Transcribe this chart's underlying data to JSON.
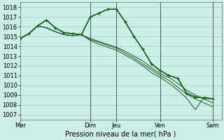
{
  "bg_color": "#cceee8",
  "grid_color": "#aad8d0",
  "line_color": "#1a5c1a",
  "ylim": [
    1006.5,
    1018.5
  ],
  "yticks": [
    1007,
    1008,
    1009,
    1010,
    1011,
    1012,
    1013,
    1014,
    1015,
    1016,
    1017,
    1018
  ],
  "xlabel": "Pression niveau de la mer( hPa )",
  "xtick_labels": [
    "Mer",
    "Dim",
    "Jeu",
    "Ven",
    "Sam"
  ],
  "xtick_positions": [
    0,
    8,
    11,
    16,
    22
  ],
  "vlines": [
    8,
    11,
    16,
    22
  ],
  "xlim": [
    0,
    23
  ],
  "series": [
    [
      1014.8,
      1015.3,
      1016.1,
      1016.7,
      1015.9,
      1015.4,
      1015.3,
      1015.2,
      1017.0,
      1017.4,
      1017.8,
      1017.8,
      1016.5,
      1015.0,
      1013.7,
      1012.2,
      1011.5,
      1011.0,
      1010.7,
      1009.2,
      1008.8,
      1008.7,
      1008.6
    ],
    [
      1014.8,
      1015.3,
      1016.1,
      1015.9,
      1015.5,
      1015.2,
      1015.1,
      1015.2,
      1014.8,
      1014.5,
      1014.2,
      1013.9,
      1013.5,
      1013.0,
      1012.5,
      1011.8,
      1011.2,
      1010.8,
      1010.2,
      1009.5,
      1009.0,
      1008.6,
      1008.2
    ],
    [
      1014.8,
      1015.3,
      1016.1,
      1015.9,
      1015.5,
      1015.2,
      1015.1,
      1015.2,
      1014.7,
      1014.4,
      1014.1,
      1013.8,
      1013.3,
      1012.8,
      1012.2,
      1011.6,
      1011.0,
      1010.5,
      1009.8,
      1009.1,
      1008.6,
      1008.2,
      1007.8
    ],
    [
      1014.8,
      1015.3,
      1016.1,
      1015.9,
      1015.5,
      1015.2,
      1015.1,
      1015.2,
      1014.6,
      1014.2,
      1013.9,
      1013.6,
      1013.1,
      1012.6,
      1012.0,
      1011.3,
      1010.8,
      1010.2,
      1009.5,
      1008.7,
      1007.5,
      1008.8,
      1008.6
    ],
    [
      1014.8,
      1015.3,
      1016.1,
      1016.7,
      1015.9,
      1015.4,
      1015.3,
      1015.2,
      1017.0,
      1017.4,
      1017.8,
      1017.8,
      1016.5,
      1015.0,
      1013.7,
      1012.2,
      1011.5,
      1011.0,
      1010.7,
      1009.2,
      1008.8,
      1008.7,
      1008.6
    ]
  ],
  "marker_series": [
    0,
    4
  ],
  "tick_fontsize": 6.0,
  "xlabel_fontsize": 7.0,
  "lw_main": 1.0,
  "lw_thin": 0.7,
  "marker_size": 3.5,
  "vline_color": "#555555",
  "vline_lw": 0.7
}
